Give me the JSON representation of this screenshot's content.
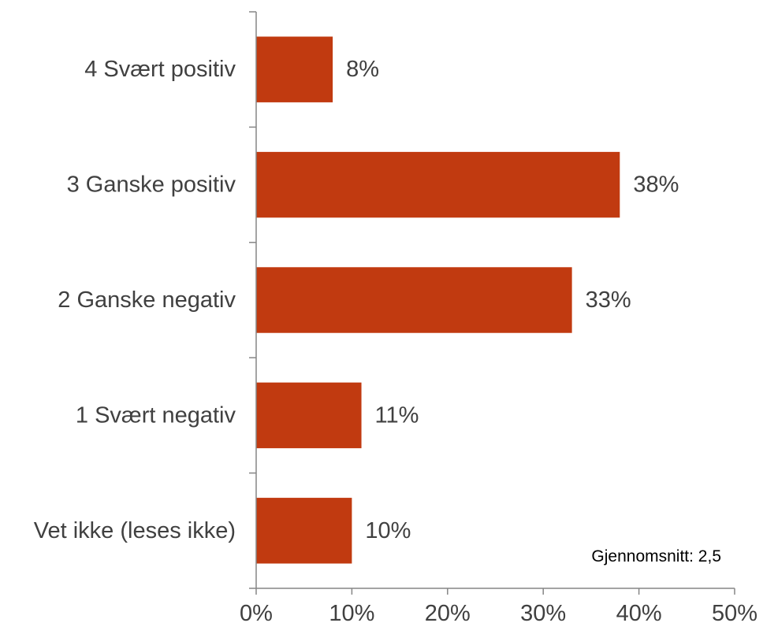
{
  "chart_data": {
    "type": "bar",
    "orientation": "horizontal",
    "categories": [
      "4 Svært positiv",
      "3 Ganske positiv",
      "2 Ganske negativ",
      "1 Svært negativ",
      "Vet ikke (leses ikke)"
    ],
    "values": [
      8,
      38,
      33,
      11,
      10
    ],
    "value_labels": [
      "8%",
      "38%",
      "33%",
      "11%",
      "10%"
    ],
    "xlim": [
      0,
      50
    ],
    "x_ticks": [
      0,
      10,
      20,
      30,
      40,
      50
    ],
    "x_tick_labels": [
      "0%",
      "10%",
      "20%",
      "30%",
      "40%",
      "50%"
    ],
    "title": "",
    "xlabel": "",
    "ylabel": "",
    "grid": false,
    "legend": "none",
    "bar_color": "#C13A10",
    "annotation": "Gjennomsnitt: 2,5"
  }
}
